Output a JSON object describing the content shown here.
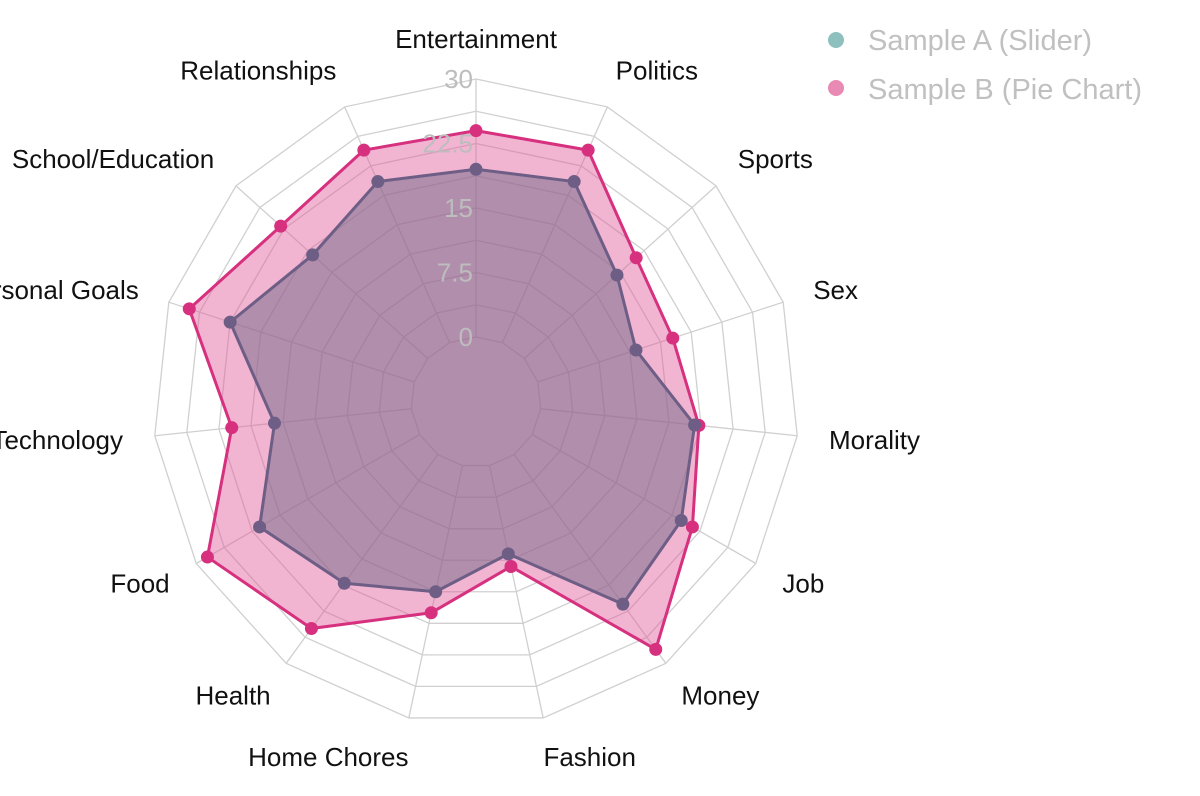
{
  "chart_data": {
    "type": "radar",
    "title": "",
    "categories": [
      "Entertainment",
      "Politics",
      "Sports",
      "Sex",
      "Morality",
      "Job",
      "Money",
      "Fashion",
      "Home Chores",
      "Health",
      "Food",
      "Technology",
      "Personal Goals",
      "School/Education",
      "Relationships"
    ],
    "series": [
      {
        "name": "Sample A (Slider)",
        "color": "#7a6e8c",
        "values": [
          19.5,
          20.5,
          14.5,
          12.0,
          18.0,
          20.0,
          21.5,
          10.5,
          15.0,
          18.5,
          21.5,
          16.0,
          22.5,
          18.0,
          20.5
        ]
      },
      {
        "name": "Sample B (Pie Chart)",
        "color": "#d6307f",
        "values": [
          24.0,
          24.5,
          17.5,
          16.5,
          18.5,
          21.5,
          28.0,
          12.0,
          17.5,
          25.0,
          28.5,
          21.0,
          27.5,
          23.0,
          24.5
        ]
      }
    ],
    "rlim": [
      0,
      30
    ],
    "ticks": [
      "0",
      "7.5",
      "15",
      "22.5",
      "30"
    ],
    "grid": true,
    "legend_position": "top-right",
    "legend_marker_colors": {
      "Sample A (Slider)": "#8fc0c0",
      "Sample B (Pie Chart)": "#e88ab4"
    }
  }
}
